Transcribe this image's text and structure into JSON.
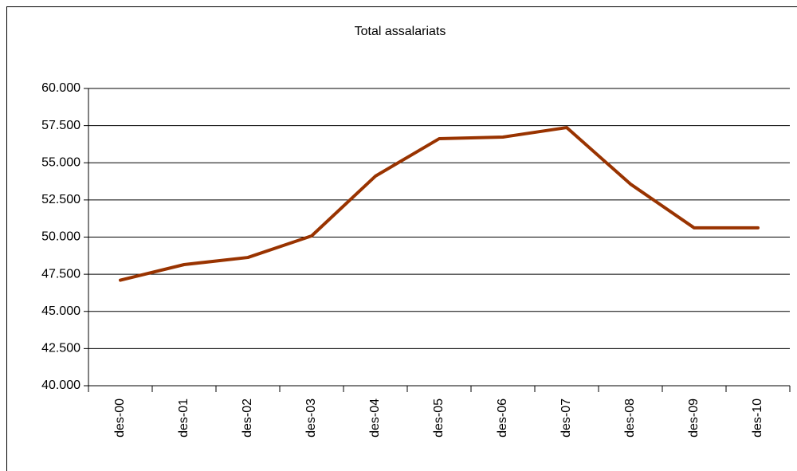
{
  "chart_data": {
    "type": "line",
    "title": "Total assalariats",
    "categories": [
      "des-00",
      "des-01",
      "des-02",
      "des-03",
      "des-04",
      "des-05",
      "des-06",
      "des-07",
      "des-08",
      "des-09",
      "des-10"
    ],
    "series": [
      {
        "color": "#993300",
        "values": [
          47100,
          48150,
          48630,
          50080,
          54100,
          56620,
          56730,
          57370,
          53570,
          50620,
          50620
        ]
      }
    ],
    "ylim": [
      40000,
      60000
    ],
    "yticks": [
      {
        "value": 40000,
        "label": "40.000"
      },
      {
        "value": 42500,
        "label": "42.500"
      },
      {
        "value": 45000,
        "label": "45.000"
      },
      {
        "value": 47500,
        "label": "47.500"
      },
      {
        "value": 50000,
        "label": "50.000"
      },
      {
        "value": 52500,
        "label": "52.500"
      },
      {
        "value": 55000,
        "label": "55.000"
      },
      {
        "value": 57500,
        "label": "57.500"
      },
      {
        "value": 60000,
        "label": "60.000"
      }
    ],
    "grid": true
  }
}
